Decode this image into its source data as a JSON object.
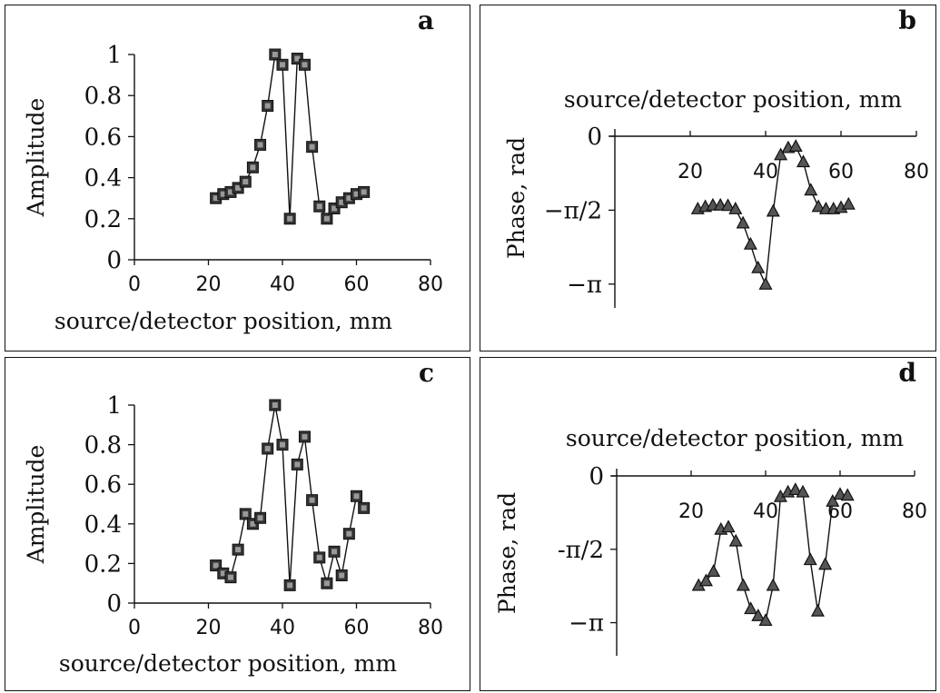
{
  "chart_data": [
    {
      "panel": "a",
      "type": "line",
      "panel_label": "a",
      "xlabel": "source/detector position, mm",
      "ylabel": "Amplitude",
      "xlim": [
        0,
        80
      ],
      "ylim": [
        0,
        1
      ],
      "x_ticks": [
        0,
        20,
        40,
        60,
        80
      ],
      "x_tick_labels": [
        "0",
        "20",
        "40",
        "60",
        "80"
      ],
      "y_ticks": [
        0,
        0.2,
        0.4,
        0.6,
        0.8,
        1
      ],
      "y_tick_labels": [
        "0",
        "0.2",
        "0.4",
        "0.6",
        "0.8",
        "1"
      ],
      "marker": "square",
      "x": [
        22,
        24,
        26,
        28,
        30,
        32,
        34,
        36,
        38,
        40,
        42,
        44,
        46,
        48,
        50,
        52,
        54,
        56,
        58,
        60,
        62
      ],
      "y": [
        0.3,
        0.32,
        0.33,
        0.35,
        0.38,
        0.45,
        0.56,
        0.75,
        1.0,
        0.95,
        0.2,
        0.98,
        0.95,
        0.55,
        0.26,
        0.2,
        0.25,
        0.28,
        0.3,
        0.32,
        0.33
      ]
    },
    {
      "panel": "b",
      "type": "line",
      "panel_label": "b",
      "xlabel": "source/detector position, mm",
      "ylabel": "Phase, rad",
      "xlim": [
        0,
        80
      ],
      "ylim": [
        -3.3,
        0
      ],
      "x_axis_position": "top",
      "x_ticks": [
        20,
        40,
        60,
        80
      ],
      "x_tick_labels": [
        "20",
        "40",
        "60",
        "80"
      ],
      "y_ticks": [
        0,
        -1.5708,
        -3.1416
      ],
      "y_tick_labels": [
        "0",
        "−π/2",
        "−π"
      ],
      "marker": "triangle",
      "x": [
        22,
        24,
        26,
        28,
        30,
        32,
        34,
        36,
        38,
        40,
        42,
        44,
        46,
        48,
        50,
        52,
        54,
        56,
        58,
        60,
        62
      ],
      "y": [
        -1.55,
        -1.5,
        -1.47,
        -1.47,
        -1.48,
        -1.55,
        -1.85,
        -2.3,
        -2.8,
        -3.15,
        -1.6,
        -0.4,
        -0.25,
        -0.22,
        -0.55,
        -1.15,
        -1.5,
        -1.55,
        -1.55,
        -1.52,
        -1.45
      ]
    },
    {
      "panel": "c",
      "type": "line",
      "panel_label": "c",
      "xlabel": "source/detector position, mm",
      "ylabel": "Amplitude",
      "xlim": [
        0,
        80
      ],
      "ylim": [
        0,
        1
      ],
      "x_ticks": [
        0,
        20,
        40,
        60,
        80
      ],
      "x_tick_labels": [
        "0",
        "20",
        "40",
        "60",
        "80"
      ],
      "y_ticks": [
        0,
        0.2,
        0.4,
        0.6,
        0.8,
        1
      ],
      "y_tick_labels": [
        "0",
        "0.2",
        "0.4",
        "0.6",
        "0.8",
        "1"
      ],
      "marker": "square",
      "x": [
        22,
        24,
        26,
        28,
        30,
        32,
        34,
        36,
        38,
        40,
        42,
        44,
        46,
        48,
        50,
        52,
        54,
        56,
        58,
        60,
        62
      ],
      "y": [
        0.19,
        0.15,
        0.13,
        0.27,
        0.45,
        0.4,
        0.43,
        0.78,
        1.0,
        0.8,
        0.09,
        0.7,
        0.84,
        0.52,
        0.23,
        0.1,
        0.26,
        0.14,
        0.35,
        0.54,
        0.48
      ]
    },
    {
      "panel": "d",
      "type": "line",
      "panel_label": "d",
      "xlabel": "source/detector position, mm",
      "ylabel": "Phase, rad",
      "xlim": [
        0,
        80
      ],
      "ylim": [
        -3.5,
        0
      ],
      "x_axis_position": "top",
      "x_ticks": [
        20,
        40,
        60,
        80
      ],
      "x_tick_labels": [
        "20",
        "40",
        "60",
        "80"
      ],
      "y_ticks": [
        0,
        -1.5708,
        -3.1416
      ],
      "y_tick_labels": [
        "0",
        "-π/2",
        "−π"
      ],
      "marker": "triangle",
      "x": [
        22,
        24,
        26,
        28,
        30,
        32,
        34,
        36,
        38,
        40,
        42,
        44,
        46,
        48,
        50,
        52,
        54,
        56,
        58,
        60,
        62
      ],
      "y": [
        -2.35,
        -2.25,
        -2.05,
        -1.15,
        -1.1,
        -1.4,
        -2.35,
        -2.85,
        -3.0,
        -3.1,
        -2.35,
        -0.45,
        -0.35,
        -0.3,
        -0.35,
        -1.8,
        -2.9,
        -1.9,
        -0.55,
        -0.4,
        -0.42
      ]
    }
  ]
}
